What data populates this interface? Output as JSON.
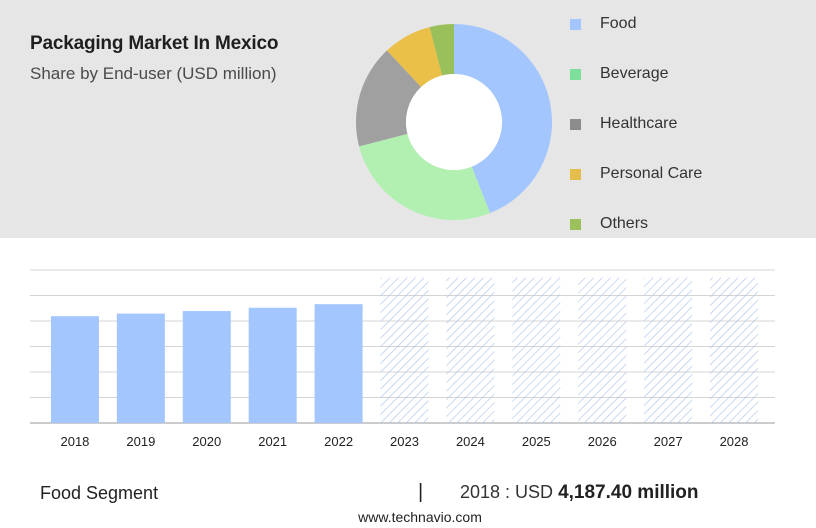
{
  "header": {
    "title": "Packaging Market In Mexico",
    "subtitle": "Share by End-user (USD million)"
  },
  "colors": {
    "food": "#a4c6ff",
    "beverage": "#b2f0b2",
    "healthcare": "#a0a0a0",
    "personal_care": "#eac048",
    "others": "#99c05a",
    "forecast_hatch": "#b3c9ea",
    "panel": "#e6e6e6"
  },
  "legend": {
    "items": [
      {
        "label": "Food",
        "swatch": "#a4c6ff"
      },
      {
        "label": "Beverage",
        "swatch": "#7de09a"
      },
      {
        "label": "Healthcare",
        "swatch": "#8c8c8c"
      },
      {
        "label": "Personal Care",
        "swatch": "#e4bd4a"
      },
      {
        "label": "Others",
        "swatch": "#9cc05c"
      }
    ]
  },
  "chart_data": [
    {
      "type": "pie",
      "subtype": "donut",
      "title": "Packaging Market In Mexico",
      "subtitle": "Share by End-user (USD million)",
      "categories": [
        "Food",
        "Beverage",
        "Healthcare",
        "Personal Care",
        "Others"
      ],
      "values": [
        44,
        27,
        17,
        8,
        4
      ],
      "legend_position": "right"
    },
    {
      "type": "bar",
      "categories": [
        "2018",
        "2019",
        "2020",
        "2021",
        "2022",
        "2023",
        "2024",
        "2025",
        "2026",
        "2027",
        "2028"
      ],
      "values": [
        4187.4,
        4290,
        4390,
        4520,
        4660,
        null,
        null,
        null,
        null,
        null,
        null
      ],
      "forecast_categories": [
        "2023",
        "2024",
        "2025",
        "2026",
        "2027",
        "2028"
      ],
      "ylim": [
        0,
        6000
      ],
      "grid": true,
      "xlabel": "",
      "ylabel": ""
    }
  ],
  "footer": {
    "segment": "Food Segment",
    "separator": "|",
    "value_prefix": "2018 : USD ",
    "value_number": "4,187.40 million",
    "site": "www.technavio.com"
  }
}
